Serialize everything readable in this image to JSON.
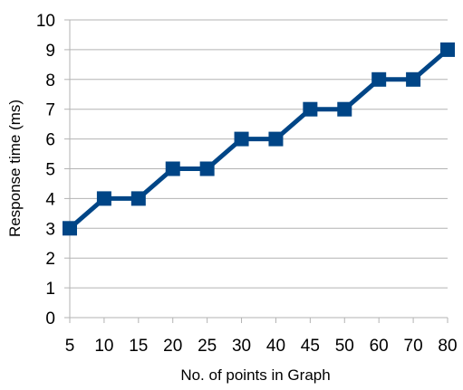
{
  "chart_data": {
    "type": "line",
    "title": "",
    "xlabel": "No. of points in Graph",
    "ylabel": "Response time (ms)",
    "categories": [
      "5",
      "10",
      "15",
      "20",
      "25",
      "30",
      "40",
      "45",
      "50",
      "60",
      "70",
      "80"
    ],
    "series": [
      {
        "values": [
          3,
          4,
          4,
          5,
          5,
          6,
          6,
          7,
          7,
          8,
          8,
          9
        ],
        "color": "#004586",
        "marker": "square"
      }
    ],
    "ylim": [
      0,
      10
    ],
    "yticks": [
      "0",
      "1",
      "2",
      "3",
      "4",
      "5",
      "6",
      "7",
      "8",
      "9",
      "10"
    ],
    "grid": "horizontal",
    "gridColor": "#b3b3b3",
    "legend": "none"
  }
}
